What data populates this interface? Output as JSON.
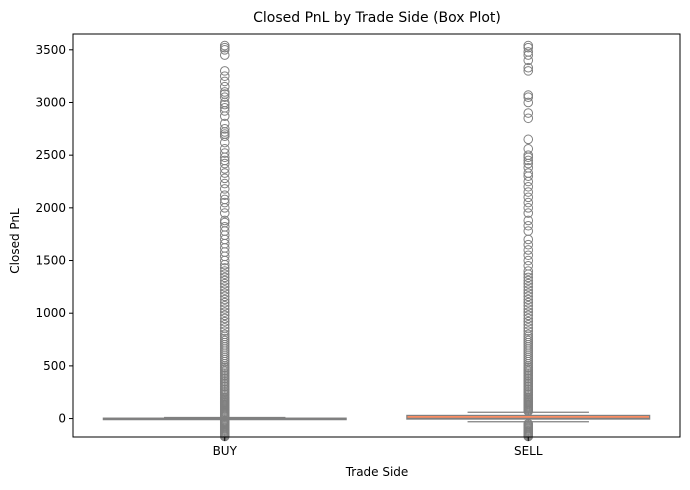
{
  "chart_data": {
    "type": "box",
    "title": "Closed PnL by Trade Side (Box Plot)",
    "xlabel": "Trade Side",
    "ylabel": "Closed PnL",
    "ylim": [
      -175,
      3650
    ],
    "yticks": [
      0,
      500,
      1000,
      1500,
      2000,
      2500,
      3000,
      3500
    ],
    "grid": false,
    "categories": [
      "BUY",
      "SELL"
    ],
    "colors": {
      "BUY": "#8da0cb",
      "SELL": "#fc8d62",
      "outline": "#808080"
    },
    "boxes": [
      {
        "category": "BUY",
        "whisker_low": -6,
        "q1": -2,
        "median": 0,
        "q3": 4,
        "whisker_high": 10,
        "outliers": [
          -170,
          -160,
          -150,
          -140,
          -130,
          -120,
          -110,
          -100,
          -90,
          -80,
          -70,
          -60,
          -50,
          -40,
          -30,
          -20,
          20,
          30,
          40,
          50,
          60,
          70,
          80,
          90,
          100,
          110,
          120,
          130,
          140,
          150,
          160,
          170,
          180,
          190,
          200,
          215,
          230,
          245,
          260,
          275,
          290,
          305,
          320,
          335,
          350,
          365,
          380,
          395,
          410,
          425,
          440,
          455,
          470,
          485,
          500,
          520,
          540,
          560,
          580,
          600,
          620,
          640,
          660,
          680,
          700,
          720,
          740,
          760,
          780,
          800,
          830,
          860,
          890,
          920,
          950,
          980,
          1010,
          1040,
          1070,
          1100,
          1130,
          1160,
          1190,
          1220,
          1250,
          1280,
          1310,
          1340,
          1370,
          1400,
          1430,
          1460,
          1500,
          1540,
          1580,
          1620,
          1660,
          1700,
          1740,
          1780,
          1820,
          1860,
          1880,
          1950,
          2000,
          2050,
          2080,
          2120,
          2180,
          2230,
          2280,
          2330,
          2370,
          2420,
          2450,
          2480,
          2520,
          2560,
          2620,
          2680,
          2700,
          2720,
          2750,
          2800,
          2870,
          2920,
          2950,
          2980,
          3000,
          3050,
          3080,
          3100,
          3150,
          3200,
          3250,
          3300,
          3450,
          3500,
          3520,
          3540
        ]
      },
      {
        "category": "SELL",
        "whisker_low": -30,
        "q1": -5,
        "median": 2,
        "q3": 30,
        "whisker_high": 60,
        "outliers": [
          -170,
          -160,
          -150,
          -140,
          -130,
          -120,
          -110,
          -100,
          -90,
          -80,
          -70,
          -60,
          -50,
          70,
          80,
          90,
          100,
          110,
          120,
          130,
          140,
          150,
          160,
          170,
          180,
          190,
          200,
          215,
          230,
          245,
          260,
          275,
          290,
          305,
          320,
          335,
          350,
          365,
          380,
          395,
          410,
          425,
          440,
          455,
          470,
          485,
          500,
          520,
          540,
          560,
          580,
          600,
          620,
          640,
          660,
          680,
          700,
          720,
          740,
          760,
          780,
          800,
          830,
          860,
          890,
          920,
          950,
          980,
          1010,
          1040,
          1070,
          1100,
          1130,
          1160,
          1190,
          1220,
          1250,
          1280,
          1310,
          1340,
          1370,
          1400,
          1450,
          1500,
          1550,
          1600,
          1650,
          1700,
          1780,
          1830,
          1880,
          1950,
          2000,
          2050,
          2100,
          2150,
          2200,
          2250,
          2300,
          2330,
          2380,
          2420,
          2450,
          2480,
          2500,
          2560,
          2650,
          2850,
          2900,
          3000,
          3050,
          3070,
          3300,
          3330,
          3400,
          3450,
          3480,
          3520,
          3540
        ]
      }
    ]
  }
}
